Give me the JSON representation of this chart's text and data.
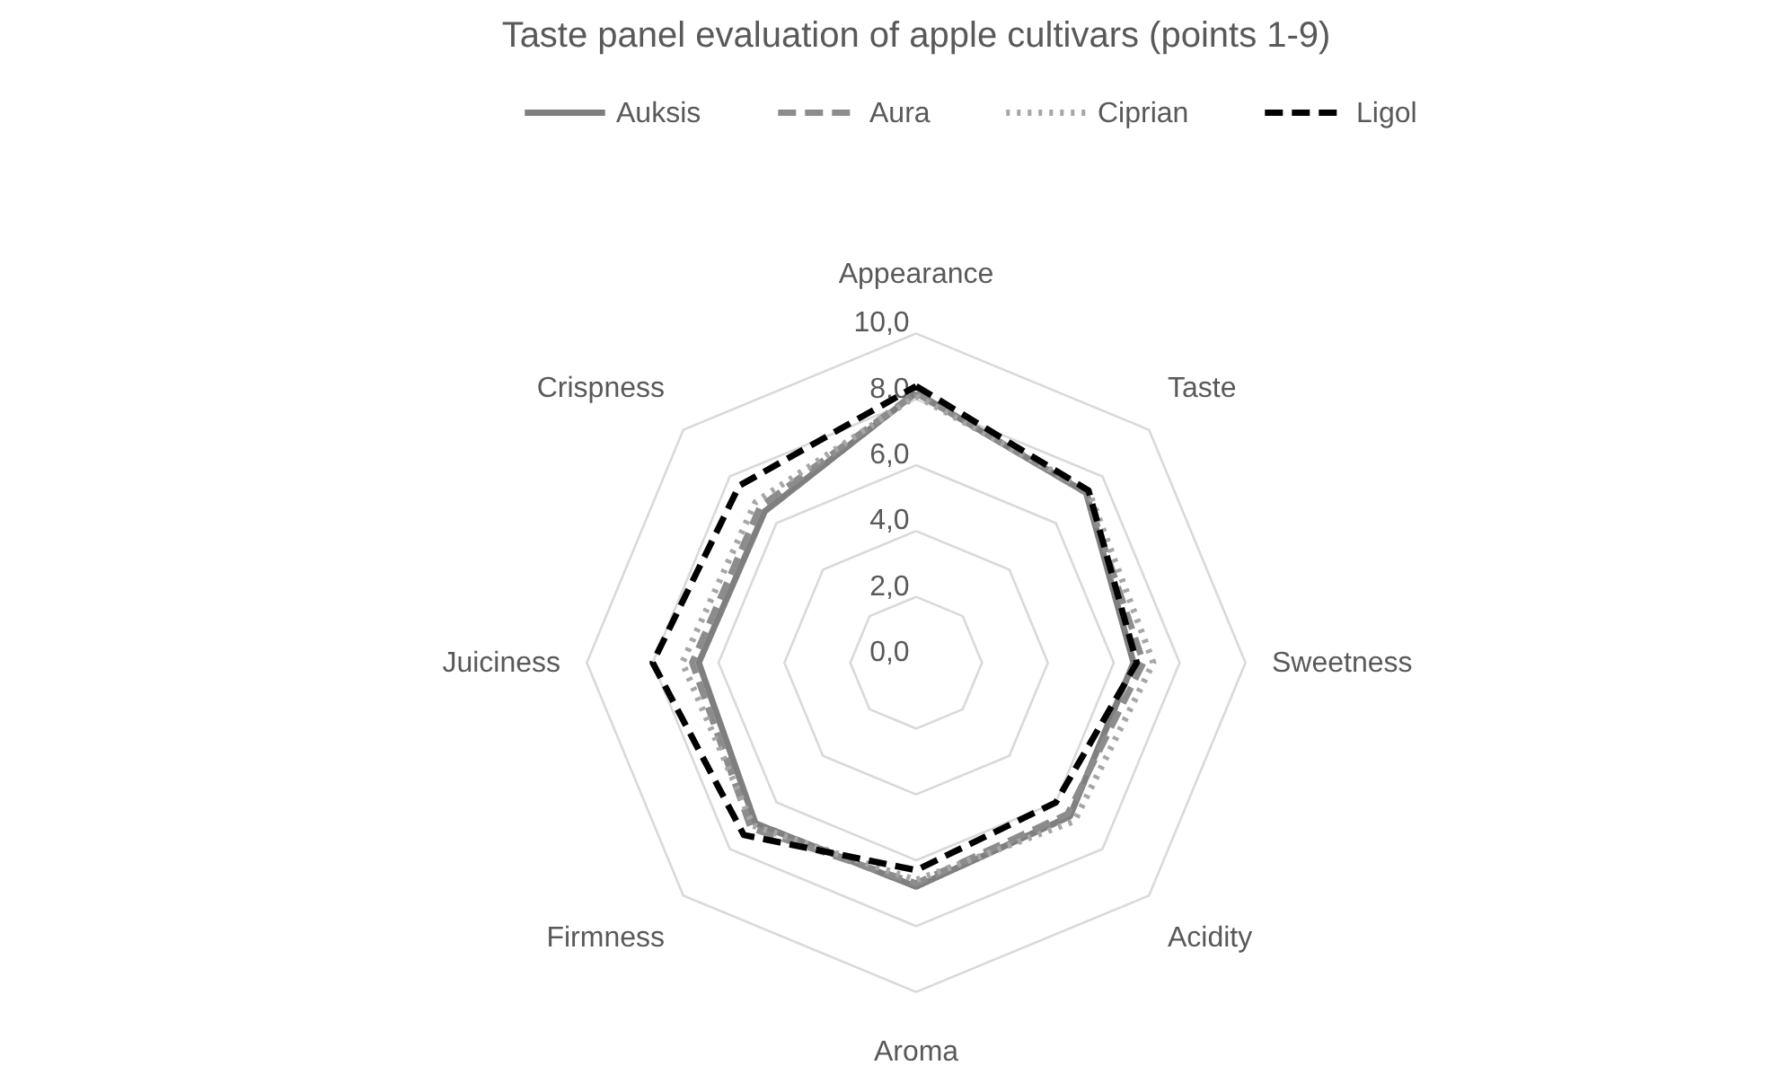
{
  "chart_data": {
    "type": "radar",
    "title": "Taste panel evaluation of apple cultivars (points 1-9)",
    "categories": [
      "Appearance",
      "Taste",
      "Sweetness",
      "Acidity",
      "Aroma",
      "Firmness",
      "Juiciness",
      "Crispness"
    ],
    "series": [
      {
        "name": "Auksis",
        "color": "#7f7f7f",
        "line_style": "solid",
        "values": [
          8.2,
          7.3,
          6.6,
          6.6,
          6.8,
          6.9,
          6.6,
          6.5
        ]
      },
      {
        "name": "Aura",
        "color": "#8c8c8c",
        "line_style": "dashed",
        "values": [
          8.2,
          7.3,
          6.9,
          6.5,
          6.7,
          7.1,
          6.8,
          6.7
        ]
      },
      {
        "name": "Ciprian",
        "color": "#a6a6a6",
        "line_style": "dotted",
        "values": [
          8.1,
          7.4,
          7.2,
          6.8,
          6.6,
          7.0,
          7.1,
          6.9
        ]
      },
      {
        "name": "Ligol",
        "color": "#000000",
        "line_style": "dashed",
        "values": [
          8.4,
          7.4,
          6.7,
          6.0,
          6.3,
          7.4,
          8.0,
          7.6
        ]
      }
    ],
    "ylim": [
      0,
      10
    ],
    "yticks": [
      {
        "value": 0,
        "label": "0,0"
      },
      {
        "value": 2,
        "label": "2,0"
      },
      {
        "value": 4,
        "label": "4,0"
      },
      {
        "value": 6,
        "label": "6,0"
      },
      {
        "value": 8,
        "label": "8,0"
      },
      {
        "value": 10,
        "label": "10,0"
      }
    ],
    "grid": true,
    "legend": "top"
  }
}
